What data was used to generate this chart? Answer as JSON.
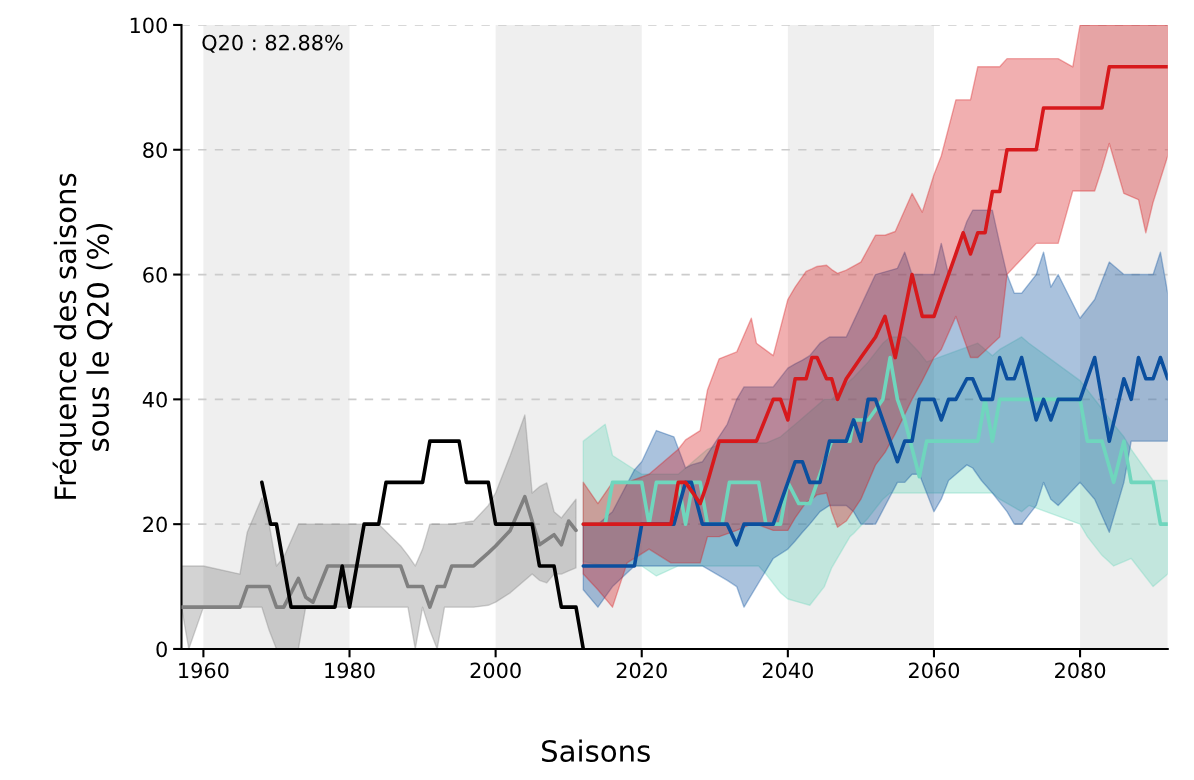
{
  "chart_data": {
    "type": "line",
    "xlabel": "Saisons",
    "ylabel": "Fréquence des saisons\nsous le Q20 (%)",
    "annotations": [
      "Q20 : 82.88%"
    ],
    "xlim": [
      1957,
      2092
    ],
    "ylim": [
      0,
      100
    ],
    "xticks": [
      1960,
      1980,
      2000,
      2020,
      2040,
      2060,
      2080
    ],
    "yticks": [
      0,
      20,
      40,
      60,
      80,
      100
    ],
    "grid": "y",
    "bands": [
      {
        "axis": "x",
        "from": 1960,
        "to": 1980,
        "color": "#efefef"
      },
      {
        "axis": "x",
        "from": 2000,
        "to": 2020,
        "color": "#efefef"
      },
      {
        "axis": "x",
        "from": 2040,
        "to": 2060,
        "color": "#efefef"
      },
      {
        "axis": "x",
        "from": 2080,
        "to": 2092,
        "color": "#efefef"
      }
    ],
    "series": [
      {
        "color": "#808080",
        "x": [
          1957,
          1958,
          1960,
          1965,
          1966,
          1968,
          1969,
          1970,
          1971,
          1973,
          1974,
          1975,
          1977,
          1980,
          1984,
          1987,
          1988,
          1989,
          1990,
          1991,
          1992,
          1993,
          1994,
          1997,
          1999,
          2000,
          2002,
          2004,
          2005,
          2006,
          2007,
          2008,
          2009,
          2010,
          2011
        ],
        "values": [
          6.7,
          6.7,
          6.7,
          6.7,
          10,
          10,
          10,
          6.7,
          6.7,
          11.3,
          8.3,
          7.5,
          13.3,
          13.3,
          13.3,
          13.3,
          10,
          10,
          10,
          6.7,
          10,
          10,
          13.3,
          13.3,
          15.4,
          16.5,
          19,
          24.4,
          20.5,
          16.7,
          17.5,
          18.3,
          16.7,
          20.5,
          19
        ],
        "upper": [
          13.3,
          13.3,
          13.3,
          12,
          18.7,
          24.2,
          20,
          13.3,
          14.7,
          20,
          20,
          20,
          20,
          20,
          20,
          16.5,
          15,
          13.3,
          16,
          20,
          20,
          20,
          20,
          20.5,
          23,
          25,
          31,
          37.5,
          25,
          26,
          26.6,
          22,
          21,
          22.5,
          24
        ],
        "lower": [
          6.7,
          0,
          6.7,
          6.7,
          6.7,
          6.7,
          3,
          0,
          0,
          0,
          6.7,
          6.7,
          6.7,
          6.7,
          6.7,
          6.7,
          6.7,
          0,
          6.7,
          3,
          0,
          6.7,
          6.7,
          6.7,
          7,
          7.5,
          9,
          11,
          12,
          11,
          10.6,
          12,
          12,
          12.5,
          13
        ]
      },
      {
        "color": "#000000",
        "x": [
          1968,
          1969.2,
          1970,
          1972,
          1978,
          1979,
          1980,
          1982,
          1984,
          1985,
          1990,
          1991,
          1995,
          1996,
          1999,
          2000,
          2005,
          2006,
          2008,
          2009,
          2011,
          2012
        ],
        "values": [
          26.7,
          20,
          20,
          6.7,
          6.7,
          13.3,
          6.7,
          20,
          20,
          26.7,
          26.7,
          33.3,
          33.3,
          26.7,
          26.7,
          20,
          20,
          13.3,
          13.3,
          6.7,
          6.7,
          0
        ]
      },
      {
        "color": "#6fd6bd",
        "x": [
          2012,
          2015,
          2016,
          2020,
          2021,
          2022,
          2025,
          2026,
          2027,
          2028,
          2029,
          2031,
          2032,
          2036,
          2037,
          2039,
          2040,
          2041.5,
          2043,
          2045,
          2046,
          2048.5,
          2049,
          2051,
          2053,
          2054,
          2055,
          2056,
          2058,
          2059,
          2066,
          2067,
          2068,
          2069,
          2072,
          2073,
          2080,
          2081,
          2083,
          2084.6,
          2086,
          2087,
          2090,
          2091,
          2092
        ],
        "values": [
          20,
          20,
          26.7,
          26.7,
          20,
          26.7,
          26.7,
          20,
          26.7,
          26.7,
          20,
          20,
          26.7,
          26.7,
          20,
          20,
          26.7,
          23.3,
          23.3,
          30,
          33.3,
          33.3,
          36.7,
          36.7,
          40,
          46.7,
          40,
          36.7,
          27.6,
          33.3,
          33.3,
          40,
          33.3,
          40,
          40,
          40,
          40,
          33.3,
          33.3,
          26.7,
          33.3,
          26.7,
          26.7,
          20,
          20
        ],
        "upper": [
          33.3,
          36,
          31,
          28,
          28,
          28,
          28,
          29,
          30,
          31,
          32,
          33,
          33,
          33,
          33,
          34,
          35,
          36.5,
          38,
          40,
          40,
          43,
          43.5,
          46,
          49,
          50,
          50,
          50,
          47.5,
          46,
          49,
          48,
          47,
          48,
          50,
          49,
          43,
          41.5,
          38.5,
          36,
          34,
          32,
          27,
          27,
          27
        ],
        "lower": [
          14,
          13.3,
          13.3,
          13.3,
          12.5,
          11.7,
          13.3,
          13.3,
          13.3,
          13.3,
          13.3,
          13.3,
          13.3,
          13.3,
          12,
          9,
          8,
          7.5,
          7,
          10,
          13,
          18,
          18.5,
          21,
          24,
          25,
          25,
          25,
          25,
          25,
          25,
          25,
          25,
          24,
          22,
          23,
          20,
          18,
          15,
          13.3,
          14,
          14.5,
          10,
          11,
          12
        ]
      },
      {
        "color": "#0b4f9e",
        "x": [
          2012,
          2014,
          2016,
          2019,
          2020,
          2022,
          2024.4,
          2026,
          2026.8,
          2028.3,
          2031.7,
          2033,
          2034,
          2038,
          2040,
          2041,
          2042,
          2043,
          2044.4,
          2045.7,
          2048,
          2049,
          2050,
          2051,
          2052,
          2055,
          2056,
          2057,
          2058,
          2060,
          2061,
          2062,
          2063,
          2064.5,
          2065.3,
          2066.5,
          2068,
          2069,
          2070,
          2071,
          2072,
          2074,
          2075,
          2076,
          2077,
          2080,
          2082,
          2084,
          2086,
          2087,
          2088,
          2089,
          2090,
          2091,
          2092
        ],
        "values": [
          13.3,
          13.3,
          13.3,
          13.3,
          20,
          20,
          20,
          26.7,
          26.7,
          20,
          20,
          16.7,
          20,
          20,
          26.7,
          30,
          30,
          26.7,
          26.7,
          33.3,
          33.3,
          36.7,
          33.3,
          40,
          40,
          30,
          33.3,
          33.3,
          40,
          40,
          36.7,
          40,
          40,
          43.3,
          43.3,
          40,
          40,
          46.7,
          43.3,
          43.3,
          46.7,
          36.7,
          40,
          36.7,
          40,
          40,
          46.7,
          33.3,
          43.3,
          40,
          46.7,
          43.3,
          43.3,
          46.7,
          43.3
        ],
        "upper": [
          20,
          20,
          22,
          28.7,
          30,
          35,
          34,
          29,
          29.5,
          30,
          36,
          40,
          42,
          42,
          45,
          45.7,
          46.3,
          47,
          49,
          50,
          50,
          52.5,
          55,
          57.5,
          60,
          61,
          63.6,
          60,
          60,
          60,
          65,
          60,
          63.5,
          68.5,
          70.3,
          70.3,
          70.3,
          65,
          60,
          57,
          57,
          60,
          63.6,
          58,
          60,
          53,
          56,
          62,
          60,
          60,
          60,
          60,
          60,
          63.6,
          57
        ],
        "lower": [
          9.5,
          6.7,
          10,
          13.3,
          13.3,
          13.3,
          13.3,
          13.3,
          13.3,
          13.3,
          11,
          10,
          6.7,
          14.5,
          16,
          17.3,
          18.7,
          20,
          22,
          23,
          23,
          22,
          20,
          20,
          20,
          26.7,
          26.7,
          28,
          28,
          22,
          24,
          27,
          28,
          29.5,
          29,
          27,
          25,
          23.5,
          22,
          20,
          20,
          23,
          26.7,
          24,
          23,
          26.7,
          24,
          18.7,
          26.7,
          33.3,
          33.3,
          33.3,
          33.3,
          33.3,
          33.3
        ]
      },
      {
        "color": "#d7191c",
        "x": [
          2012,
          2014,
          2016,
          2018,
          2021,
          2024,
          2025,
          2026,
          2028,
          2029,
          2030.6,
          2033,
          2035,
          2035.7,
          2038,
          2039,
          2040,
          2041,
          2042.5,
          2043.3,
          2044,
          2045.3,
          2046,
          2046.8,
          2048,
          2050,
          2052,
          2053.3,
          2054.7,
          2057,
          2058.4,
          2060,
          2061,
          2063,
          2064,
          2065,
          2066,
          2067,
          2068,
          2069,
          2070,
          2074,
          2075,
          2077,
          2079,
          2080,
          2082,
          2083,
          2084,
          2086,
          2088,
          2089,
          2090,
          2092
        ],
        "values": [
          20,
          20,
          20,
          20,
          20,
          20,
          26.7,
          26.7,
          23.3,
          26.7,
          33.3,
          33.3,
          33.3,
          33.3,
          40,
          40,
          36.7,
          43.3,
          43.3,
          46.7,
          46.7,
          43.3,
          43.3,
          40,
          43.3,
          46.7,
          50,
          53.3,
          46.7,
          60,
          53.3,
          53.3,
          56.7,
          63.3,
          66.7,
          63.3,
          66.7,
          66.7,
          73.3,
          73.3,
          80,
          80,
          86.7,
          86.7,
          86.7,
          86.7,
          86.7,
          86.7,
          93.3,
          93.3,
          93.3,
          93.3,
          93.3,
          93.3
        ],
        "upper": [
          26.7,
          23.3,
          26.7,
          26.7,
          28,
          31,
          32,
          33.5,
          35,
          41.5,
          46.5,
          47.6,
          53,
          49,
          47,
          51.5,
          56,
          58,
          60.5,
          60.9,
          61.3,
          61.5,
          60.8,
          60.2,
          60.7,
          62,
          66.3,
          66.3,
          66.9,
          73,
          70,
          76,
          79,
          88,
          88,
          88,
          93.3,
          93.3,
          93.3,
          93.3,
          94.6,
          94.6,
          94.6,
          94.6,
          93.3,
          100,
          100,
          100,
          100,
          100,
          100,
          100,
          100,
          100
        ],
        "lower": [
          12,
          9.5,
          6.7,
          13.8,
          16,
          13.8,
          13.8,
          13.8,
          13.8,
          18,
          18,
          19,
          20,
          20,
          19,
          19,
          19,
          21,
          23.5,
          24,
          24.7,
          25,
          22,
          19.5,
          20.5,
          24,
          29.5,
          31.5,
          34.5,
          40,
          43,
          46.7,
          48,
          53.3,
          50,
          46.7,
          46.7,
          47.8,
          48.9,
          50,
          60,
          65,
          65,
          65,
          73.4,
          73.4,
          73.4,
          77,
          81,
          73,
          72,
          66.7,
          71.6,
          79
        ]
      }
    ]
  }
}
